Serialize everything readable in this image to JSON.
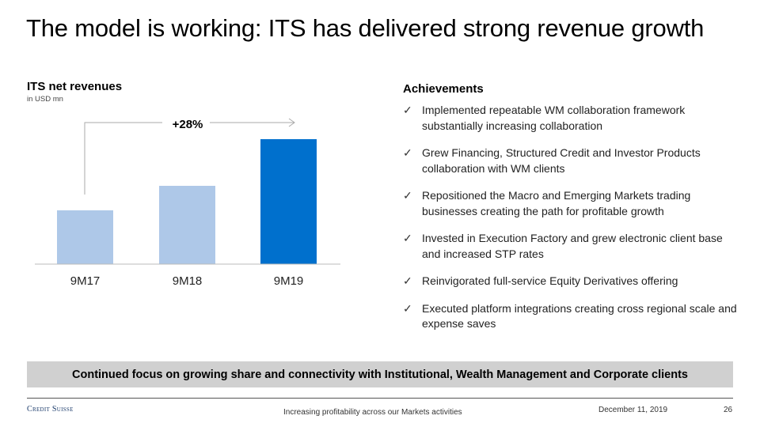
{
  "title": "The model is working: ITS has delivered strong revenue growth",
  "chart_data": {
    "type": "bar",
    "title": "ITS net revenues",
    "subtitle": "in USD mn",
    "categories": [
      "9M17",
      "9M18",
      "9M19"
    ],
    "values": [
      68,
      99,
      158
    ],
    "values_note": "relative bar heights; no value labels shown",
    "colors": [
      "#aec8e8",
      "#aec8e8",
      "#0070cd"
    ],
    "annotation": "+28%",
    "xlabel": "",
    "ylabel": "",
    "grid": false
  },
  "achievements": {
    "title": "Achievements",
    "check_icon": "✓",
    "items": [
      "Implemented repeatable WM collaboration framework substantially increasing collaboration",
      "Grew Financing, Structured Credit and Investor Products collaboration with WM clients",
      "Repositioned the Macro and Emerging Markets trading businesses creating the path for profitable growth",
      "Invested in Execution Factory and grew electronic client base and increased STP rates",
      "Reinvigorated full-service Equity Derivatives offering",
      "Executed platform integrations creating cross regional scale and expense saves"
    ]
  },
  "banner": "Continued focus on growing share and connectivity with Institutional, Wealth Management and Corporate clients",
  "footer": {
    "logo": "Credit Suisse",
    "text": "Increasing profitability across our Markets activities",
    "date": "December 11, 2019",
    "page": "26"
  }
}
